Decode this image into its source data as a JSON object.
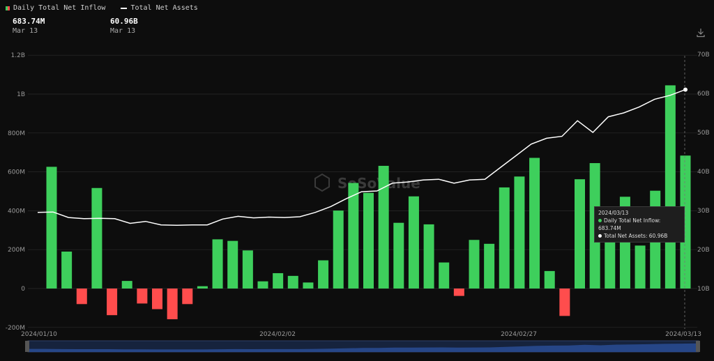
{
  "legend": {
    "inflow_label": "Daily Total Net Inflow",
    "assets_label": "Total Net Assets"
  },
  "readout": {
    "inflow_value": "683.74M",
    "inflow_date": "Mar 13",
    "assets_value": "60.96B",
    "assets_date": "Mar 13"
  },
  "tooltip": {
    "date": "2024/03/13",
    "inflow_text": "Daily Total Net Inflow: 683.74M",
    "assets_text": "Total Net Assets: 60.96B"
  },
  "watermark": "SoSoValue",
  "colors": {
    "positive": "#3ecf5c",
    "negative": "#ff4d4d",
    "line": "#ffffff",
    "grid": "#2a2a2a"
  },
  "icons": {
    "download": "download-icon"
  },
  "chart_data": {
    "type": "bar",
    "left_axis": {
      "ticks": [
        "-200M",
        "0",
        "200M",
        "400M",
        "600M",
        "800M",
        "1B",
        "1.2B"
      ],
      "ylim": [
        -200,
        1200
      ],
      "unit": "M"
    },
    "right_axis": {
      "ticks": [
        "10B",
        "20B",
        "30B",
        "40B",
        "50B",
        "60B",
        "70B"
      ],
      "ylim": [
        0,
        70
      ],
      "unit": "B"
    },
    "x_tick_labels": [
      "2024/01/10",
      "2024/02/02",
      "2024/02/27",
      "2024/03/13"
    ],
    "series": [
      {
        "name": "Daily Total Net Inflow",
        "type": "bar",
        "values": [
          626,
          190,
          -80,
          517,
          -137,
          39,
          -77,
          -106,
          -158,
          -80,
          12,
          253,
          245,
          196,
          37,
          79,
          65,
          31,
          145,
          401,
          543,
          492,
          631,
          338,
          474,
          330,
          134,
          -38,
          250,
          230,
          520,
          576,
          672,
          90,
          -141,
          562,
          645,
          290,
          472,
          221,
          503,
          1045,
          683.74
        ]
      },
      {
        "name": "Total Net Assets",
        "type": "line",
        "values": [
          29.5,
          29.6,
          28.2,
          27.9,
          28.0,
          27.9,
          26.7,
          27.2,
          26.3,
          26.2,
          26.3,
          26.3,
          27.8,
          28.5,
          28.1,
          28.3,
          28.2,
          28.4,
          29.5,
          31.0,
          33.0,
          34.8,
          35.0,
          37.0,
          37.3,
          37.8,
          38.0,
          37.0,
          37.8,
          38.0,
          41.0,
          44.0,
          47.0,
          48.5,
          49.0,
          53.0,
          50.0,
          54.0,
          55.0,
          56.5,
          58.5,
          59.5,
          60.96
        ]
      }
    ],
    "grid": true,
    "legend_position": "top-left"
  }
}
